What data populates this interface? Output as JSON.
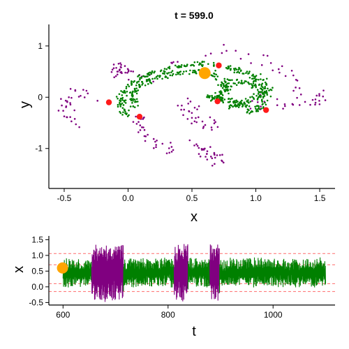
{
  "chart_data": [
    {
      "type": "scatter",
      "title": "t = 599.0",
      "xlabel": "x",
      "ylabel": "y",
      "xlim": [
        -0.62,
        1.62
      ],
      "ylim": [
        -1.78,
        1.42
      ],
      "xticks": [
        -0.5,
        0.0,
        0.5,
        1.0,
        1.5
      ],
      "xtick_labels": [
        "-0.5",
        "0.0",
        "0.5",
        "1.0",
        "1.5"
      ],
      "yticks": [
        -1,
        0,
        1
      ],
      "ytick_labels": [
        "-1",
        "0",
        "1"
      ],
      "grid": false,
      "colors": {
        "outer_points": "#800080",
        "inner_points": "#008000",
        "markers": "#ff1a1a",
        "highlight": "#ffa500"
      },
      "red_markers": [
        {
          "x": -0.15,
          "y": -0.1
        },
        {
          "x": 0.09,
          "y": -0.38
        },
        {
          "x": 0.7,
          "y": -0.08
        },
        {
          "x": 0.71,
          "y": 0.62
        },
        {
          "x": 1.08,
          "y": -0.25
        }
      ],
      "highlight_point": {
        "x": 0.6,
        "y": 0.47
      }
    },
    {
      "type": "line",
      "xlabel": "t",
      "ylabel": "x",
      "xlim": [
        573,
        1118
      ],
      "ylim": [
        -0.58,
        1.62
      ],
      "xticks": [
        600,
        800,
        1000
      ],
      "xtick_labels": [
        "600",
        "800",
        "1000"
      ],
      "yticks": [
        -0.5,
        0.0,
        0.5,
        1.0,
        1.5
      ],
      "ytick_labels": [
        "-0.5",
        "0.0",
        "0.5",
        "1.0",
        "1.5"
      ],
      "grid": false,
      "colors": {
        "regular": "#008000",
        "burst": "#800080",
        "threshold": "#ff6b6b",
        "highlight": "#ffa500"
      },
      "t_range": [
        600,
        1100
      ],
      "thresholds": [
        -0.15,
        0.1,
        0.7,
        1.06
      ],
      "burst_intervals": [
        [
          655,
          715
        ],
        [
          812,
          838
        ],
        [
          880,
          898
        ]
      ],
      "highlight_point": {
        "t": 599,
        "x": 0.6
      }
    }
  ]
}
